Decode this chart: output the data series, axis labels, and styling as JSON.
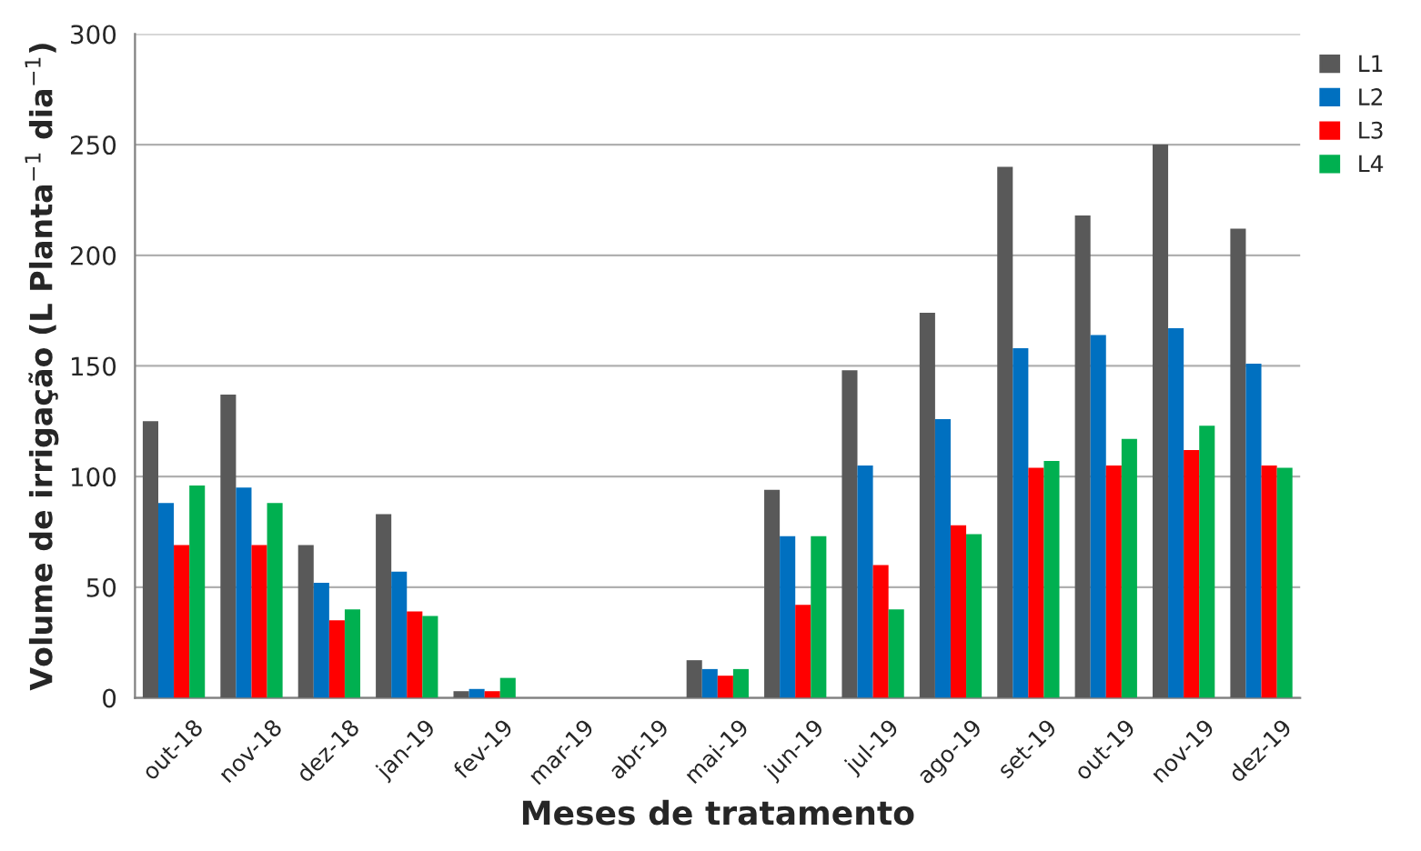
{
  "chart_data": {
    "type": "bar",
    "xlabel": "Meses de tratamento",
    "ylabel": "Volume de irrigação (L Planta$^{−1}$ dia$^{−1}$)",
    "categories": [
      "out-18",
      "nov-18",
      "dez-18",
      "jan-19",
      "fev-19",
      "mar-19",
      "abr-19",
      "mai-19",
      "jun-19",
      "jul-19",
      "ago-19",
      "set-19",
      "out-19",
      "nov-19",
      "dez-19"
    ],
    "series": [
      {
        "name": "L1",
        "color": "#595959",
        "values": [
          125,
          137,
          69,
          83,
          3,
          null,
          null,
          17,
          94,
          148,
          174,
          240,
          218,
          250,
          212
        ]
      },
      {
        "name": "L2",
        "color": "#0070c0",
        "values": [
          88,
          95,
          52,
          57,
          4,
          null,
          null,
          13,
          73,
          105,
          126,
          158,
          164,
          167,
          151
        ]
      },
      {
        "name": "L3",
        "color": "#ff0000",
        "values": [
          69,
          69,
          35,
          39,
          3,
          null,
          null,
          10,
          42,
          60,
          78,
          104,
          105,
          112,
          105
        ]
      },
      {
        "name": "L4",
        "color": "#00b050",
        "values": [
          96,
          88,
          40,
          37,
          9,
          null,
          null,
          13,
          73,
          40,
          74,
          107,
          117,
          123,
          104
        ]
      }
    ],
    "ylim": [
      0,
      300
    ],
    "yticks": [
      0,
      50,
      100,
      150,
      200,
      250,
      300
    ],
    "grid": "y",
    "legend": "top right"
  }
}
